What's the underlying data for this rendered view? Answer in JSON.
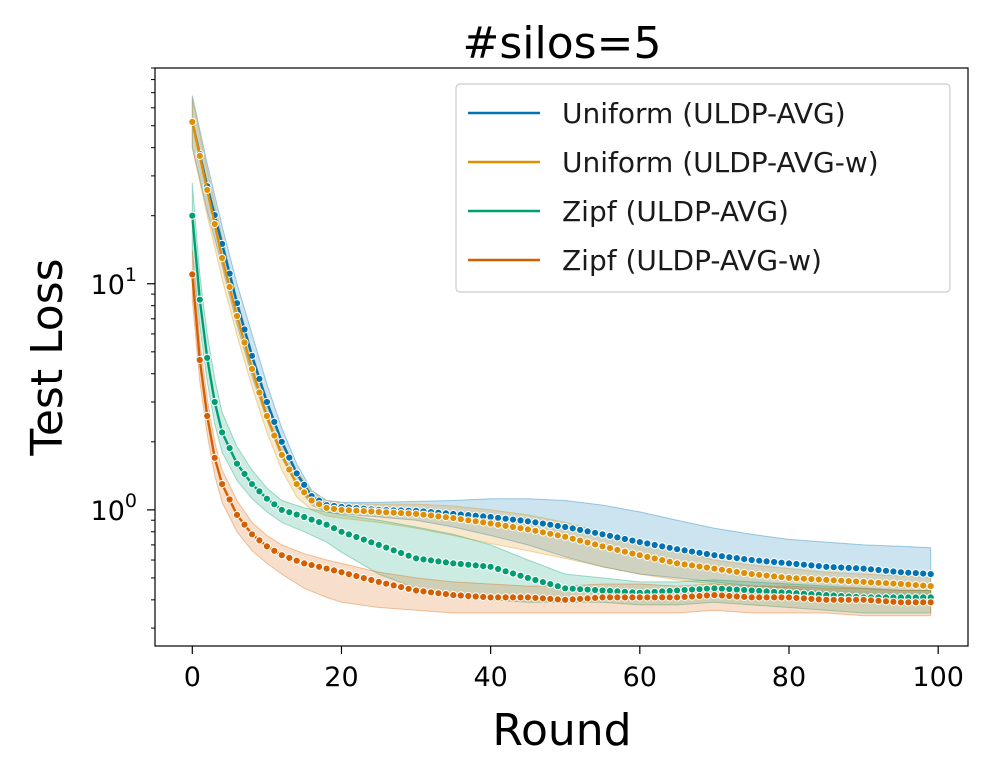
{
  "chart_data": {
    "type": "line",
    "title": "#silos=5",
    "xlabel": "Round",
    "ylabel": "Test Loss",
    "xlim": [
      -5,
      104
    ],
    "ylim": [
      0.25,
      90
    ],
    "yscale": "log",
    "x_ticks": [
      0,
      20,
      40,
      60,
      80,
      100
    ],
    "x_tick_labels": [
      "0",
      "20",
      "40",
      "60",
      "80",
      "100"
    ],
    "y_ticks": [
      1,
      10
    ],
    "y_tick_base": "10",
    "y_tick_exponents": [
      "0",
      "1"
    ],
    "legend_position": "upper-right",
    "grid": false,
    "series": [
      {
        "name": "Uniform (ULDP-AVG)",
        "color": "#0173b2",
        "x": [
          0,
          2,
          4,
          6,
          8,
          10,
          12,
          14,
          16,
          18,
          20,
          25,
          30,
          35,
          40,
          45,
          50,
          55,
          60,
          65,
          70,
          75,
          80,
          85,
          90,
          95,
          99
        ],
        "y": [
          52,
          27,
          15,
          8.2,
          4.8,
          3.0,
          2.0,
          1.45,
          1.15,
          1.05,
          1.03,
          1.0,
          0.99,
          0.96,
          0.93,
          0.89,
          0.84,
          0.78,
          0.72,
          0.67,
          0.63,
          0.6,
          0.58,
          0.56,
          0.55,
          0.53,
          0.52
        ],
        "band_upper": [
          68,
          34,
          18,
          10,
          6,
          3.6,
          2.3,
          1.6,
          1.22,
          1.1,
          1.08,
          1.08,
          1.09,
          1.1,
          1.12,
          1.12,
          1.1,
          1.05,
          0.98,
          0.9,
          0.83,
          0.78,
          0.74,
          0.72,
          0.7,
          0.69,
          0.68
        ],
        "band_lower": [
          40,
          21,
          12,
          6.6,
          3.9,
          2.5,
          1.7,
          1.28,
          1.05,
          0.98,
          0.96,
          0.93,
          0.9,
          0.84,
          0.77,
          0.7,
          0.62,
          0.56,
          0.52,
          0.5,
          0.48,
          0.46,
          0.45,
          0.43,
          0.41,
          0.4,
          0.4
        ]
      },
      {
        "name": "Uniform (ULDP-AVG-w)",
        "color": "#de8f05",
        "x": [
          0,
          2,
          4,
          6,
          8,
          10,
          12,
          14,
          16,
          18,
          20,
          25,
          30,
          35,
          40,
          45,
          50,
          55,
          60,
          65,
          70,
          75,
          80,
          85,
          90,
          95,
          99
        ],
        "y": [
          52,
          26,
          13,
          7.2,
          4.2,
          2.6,
          1.75,
          1.3,
          1.1,
          1.02,
          1.0,
          0.98,
          0.96,
          0.92,
          0.87,
          0.82,
          0.76,
          0.69,
          0.63,
          0.58,
          0.55,
          0.52,
          0.5,
          0.49,
          0.48,
          0.47,
          0.46
        ],
        "band_upper": [
          66,
          32,
          16,
          8.6,
          5.0,
          3.1,
          2.05,
          1.5,
          1.2,
          1.1,
          1.07,
          1.06,
          1.06,
          1.04,
          1.0,
          0.95,
          0.88,
          0.8,
          0.72,
          0.66,
          0.6,
          0.57,
          0.55,
          0.53,
          0.52,
          0.51,
          0.5
        ],
        "band_lower": [
          40,
          20,
          10.5,
          5.9,
          3.5,
          2.2,
          1.5,
          1.14,
          1.0,
          0.94,
          0.92,
          0.88,
          0.83,
          0.77,
          0.71,
          0.66,
          0.61,
          0.56,
          0.52,
          0.49,
          0.47,
          0.45,
          0.44,
          0.43,
          0.42,
          0.41,
          0.41
        ]
      },
      {
        "name": "Zipf (ULDP-AVG)",
        "color": "#029e73",
        "x": [
          0,
          1,
          2,
          3,
          4,
          6,
          8,
          10,
          12,
          15,
          18,
          20,
          25,
          30,
          35,
          40,
          45,
          50,
          55,
          60,
          65,
          70,
          75,
          80,
          85,
          90,
          95,
          99
        ],
        "y": [
          20,
          8.5,
          4.7,
          3.0,
          2.2,
          1.6,
          1.3,
          1.12,
          1.0,
          0.93,
          0.86,
          0.8,
          0.7,
          0.61,
          0.58,
          0.56,
          0.5,
          0.45,
          0.44,
          0.43,
          0.44,
          0.45,
          0.44,
          0.43,
          0.42,
          0.41,
          0.41,
          0.41
        ],
        "band_upper": [
          28,
          11,
          6.0,
          3.8,
          2.7,
          1.9,
          1.5,
          1.25,
          1.1,
          1.02,
          0.98,
          0.95,
          0.9,
          0.84,
          0.78,
          0.7,
          0.6,
          0.52,
          0.5,
          0.48,
          0.48,
          0.49,
          0.48,
          0.47,
          0.46,
          0.45,
          0.44,
          0.44
        ],
        "band_lower": [
          14,
          6.5,
          3.7,
          2.4,
          1.8,
          1.35,
          1.12,
          0.98,
          0.88,
          0.8,
          0.72,
          0.65,
          0.52,
          0.45,
          0.42,
          0.4,
          0.39,
          0.39,
          0.39,
          0.38,
          0.38,
          0.39,
          0.38,
          0.37,
          0.36,
          0.35,
          0.35,
          0.35
        ]
      },
      {
        "name": "Zipf (ULDP-AVG-w)",
        "color": "#d55e00",
        "x": [
          0,
          1,
          2,
          3,
          4,
          6,
          8,
          10,
          12,
          15,
          18,
          20,
          25,
          30,
          35,
          40,
          45,
          50,
          55,
          60,
          65,
          70,
          75,
          80,
          85,
          90,
          95,
          99
        ],
        "y": [
          11,
          4.6,
          2.6,
          1.7,
          1.3,
          0.95,
          0.78,
          0.69,
          0.63,
          0.58,
          0.55,
          0.53,
          0.48,
          0.44,
          0.42,
          0.41,
          0.41,
          0.4,
          0.41,
          0.41,
          0.41,
          0.42,
          0.41,
          0.41,
          0.4,
          0.4,
          0.39,
          0.39
        ],
        "band_upper": [
          14,
          5.6,
          3.1,
          2.0,
          1.5,
          1.1,
          0.88,
          0.77,
          0.7,
          0.64,
          0.6,
          0.58,
          0.53,
          0.5,
          0.48,
          0.47,
          0.46,
          0.46,
          0.47,
          0.47,
          0.46,
          0.47,
          0.46,
          0.46,
          0.45,
          0.45,
          0.44,
          0.44
        ],
        "band_lower": [
          8.5,
          3.7,
          2.15,
          1.42,
          1.08,
          0.8,
          0.66,
          0.58,
          0.52,
          0.45,
          0.41,
          0.39,
          0.37,
          0.36,
          0.35,
          0.35,
          0.35,
          0.35,
          0.35,
          0.35,
          0.35,
          0.36,
          0.35,
          0.35,
          0.35,
          0.34,
          0.34,
          0.34
        ]
      }
    ]
  }
}
